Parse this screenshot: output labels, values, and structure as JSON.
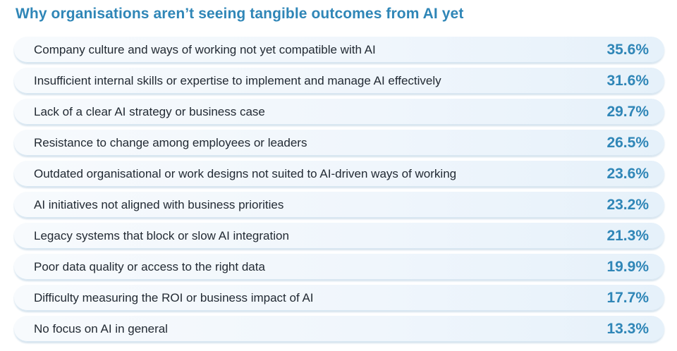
{
  "chart_data": {
    "type": "table",
    "title": "Why organisations aren’t seeing tangible outcomes from AI yet",
    "categories": [
      "Company culture and ways of working not yet compatible with AI",
      "Insufficient internal skills or expertise to implement and manage AI effectively",
      "Lack of a clear AI strategy or business case",
      "Resistance to change among employees or leaders",
      "Outdated organisational or work designs not suited to AI-driven ways of working",
      "AI initiatives not aligned with business priorities",
      "Legacy systems that block or slow AI integration",
      "Poor data quality or access to the right data",
      "Difficulty measuring the ROI or business impact of AI",
      "No focus on AI in general"
    ],
    "values": [
      35.6,
      31.6,
      29.7,
      26.5,
      23.6,
      23.2,
      21.3,
      19.9,
      17.7,
      13.3
    ],
    "value_labels": [
      "35.6%",
      "31.6%",
      "29.7%",
      "26.5%",
      "23.6%",
      "23.2%",
      "21.3%",
      "19.9%",
      "17.7%",
      "13.3%"
    ]
  },
  "colors": {
    "accent": "#2f86b7",
    "text": "#222a33",
    "row_background": "#f0f6fc"
  }
}
